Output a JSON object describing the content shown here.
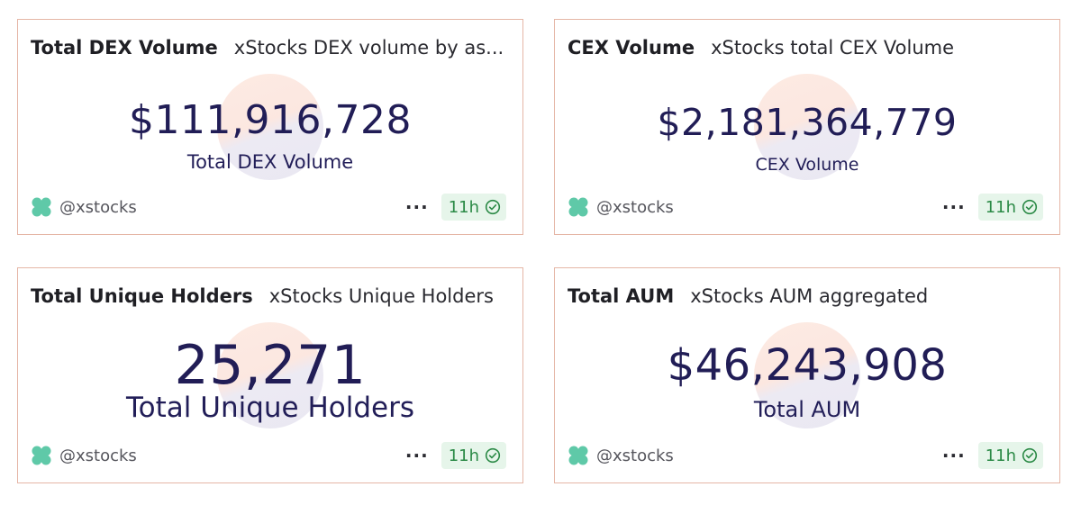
{
  "cards": [
    {
      "title": "Total DEX Volume",
      "subtitle": "xStocks DEX volume by as...",
      "value": "$111,916,728",
      "caption": "Total DEX Volume",
      "author": "@xstocks",
      "age": "11h"
    },
    {
      "title": "CEX Volume",
      "subtitle": "xStocks total CEX Volume",
      "value": "$2,181,364,779",
      "caption": "CEX Volume",
      "author": "@xstocks",
      "age": "11h"
    },
    {
      "title": "Total Unique Holders",
      "subtitle": "xStocks Unique Holders",
      "value": "25,271",
      "caption": "Total Unique Holders",
      "author": "@xstocks",
      "age": "11h"
    },
    {
      "title": "Total AUM",
      "subtitle": "xStocks AUM aggregated",
      "value": "$46,243,908",
      "caption": "Total AUM",
      "author": "@xstocks",
      "age": "11h"
    }
  ],
  "colors": {
    "card_border": "#e5b6a6",
    "value_text": "#211d56",
    "badge_bg": "#e6f5ea",
    "badge_text": "#2b8a46",
    "logo_green": "#5fc9a8"
  },
  "icons": {
    "author_logo": "xstocks-logo-icon",
    "more": "more-horizontal-icon",
    "badge": "check-circle-icon"
  }
}
